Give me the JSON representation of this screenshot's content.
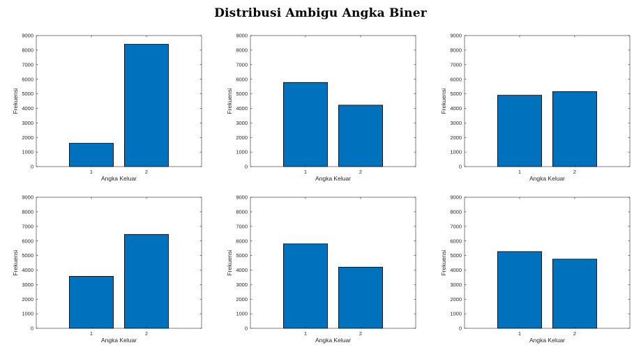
{
  "figure": {
    "title": "Distribusi Ambigu Angka Biner",
    "bar_color": "#0072BD",
    "axis_color": "#262626"
  },
  "chart_data": [
    {
      "type": "bar",
      "categories": [
        "1",
        "2"
      ],
      "values": [
        1600,
        8400
      ],
      "xlabel": "Angka Keluar",
      "ylabel": "Frekuensi",
      "ylim": [
        0,
        9000
      ],
      "yticks": [
        0,
        1000,
        2000,
        3000,
        4000,
        5000,
        6000,
        7000,
        8000,
        9000
      ],
      "grid": false
    },
    {
      "type": "bar",
      "categories": [
        "1",
        "2"
      ],
      "values": [
        5780,
        4220
      ],
      "xlabel": "Angka Keluar",
      "ylabel": "Frekuensi",
      "ylim": [
        0,
        9000
      ],
      "yticks": [
        0,
        1000,
        2000,
        3000,
        4000,
        5000,
        6000,
        7000,
        8000,
        9000
      ],
      "grid": false
    },
    {
      "type": "bar",
      "categories": [
        "1",
        "2"
      ],
      "values": [
        4900,
        5150
      ],
      "xlabel": "Angka Keluar",
      "ylabel": "Frekuensi",
      "ylim": [
        0,
        9000
      ],
      "yticks": [
        0,
        1000,
        2000,
        3000,
        4000,
        5000,
        6000,
        7000,
        8000,
        9000
      ],
      "grid": false
    },
    {
      "type": "bar",
      "categories": [
        "1",
        "2"
      ],
      "values": [
        3570,
        6450
      ],
      "xlabel": "Angka Keluar",
      "ylabel": "Frekuensi",
      "ylim": [
        0,
        9000
      ],
      "yticks": [
        0,
        1000,
        2000,
        3000,
        4000,
        5000,
        6000,
        7000,
        8000,
        9000
      ],
      "grid": false
    },
    {
      "type": "bar",
      "categories": [
        "1",
        "2"
      ],
      "values": [
        5800,
        4200
      ],
      "xlabel": "Angka Keluar",
      "ylabel": "Frekuensi",
      "ylim": [
        0,
        9000
      ],
      "yticks": [
        0,
        1000,
        2000,
        3000,
        4000,
        5000,
        6000,
        7000,
        8000,
        9000
      ],
      "grid": false
    },
    {
      "type": "bar",
      "categories": [
        "1",
        "2"
      ],
      "values": [
        5270,
        4750
      ],
      "xlabel": "Angka Keluar",
      "ylabel": "Frekuensi",
      "ylim": [
        0,
        9000
      ],
      "yticks": [
        0,
        1000,
        2000,
        3000,
        4000,
        5000,
        6000,
        7000,
        8000,
        9000
      ],
      "grid": false
    }
  ]
}
